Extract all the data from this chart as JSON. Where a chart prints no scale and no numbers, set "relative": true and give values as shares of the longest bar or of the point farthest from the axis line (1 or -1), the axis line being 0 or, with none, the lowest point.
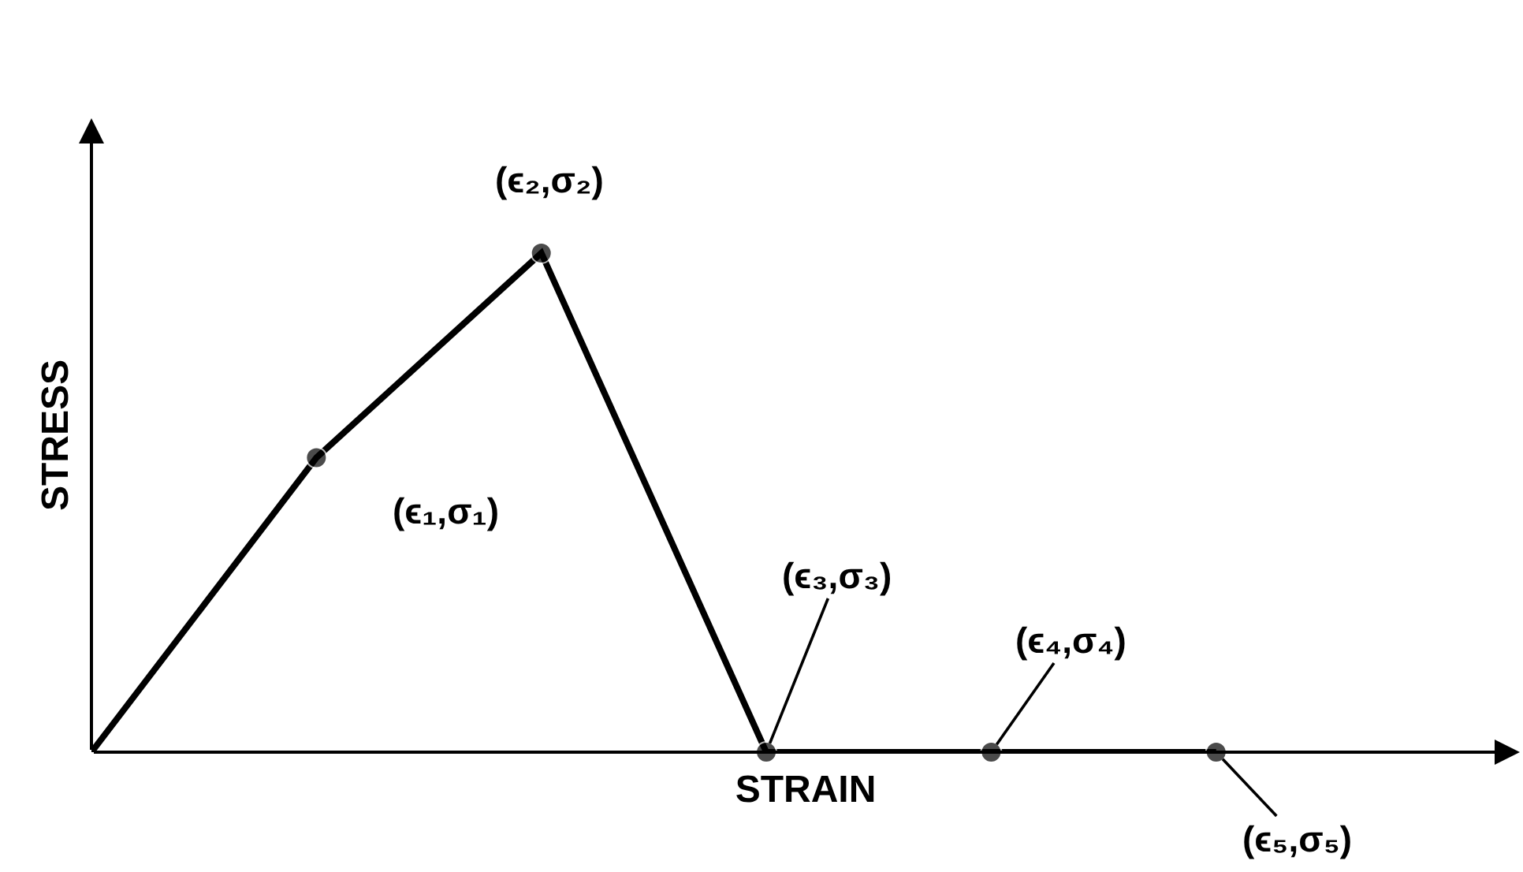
{
  "chart_data": {
    "type": "line",
    "relative": true,
    "xlabel": "STRAIN",
    "ylabel": "STRESS",
    "marker": "circle",
    "line_style": "solid",
    "categories": [
      null,
      null,
      null,
      null,
      null,
      null
    ],
    "series": [
      {
        "color": "#000000",
        "values": [
          0,
          0.59,
          1,
          0,
          0,
          0
        ]
      }
    ],
    "annotations": [
      "(ϵ₁,σ₁)",
      "(ϵ₂,σ₂)",
      "(ϵ₃,σ₃)",
      "(ϵ₄,σ₄)",
      "(ϵ₅,σ₅)"
    ]
  }
}
